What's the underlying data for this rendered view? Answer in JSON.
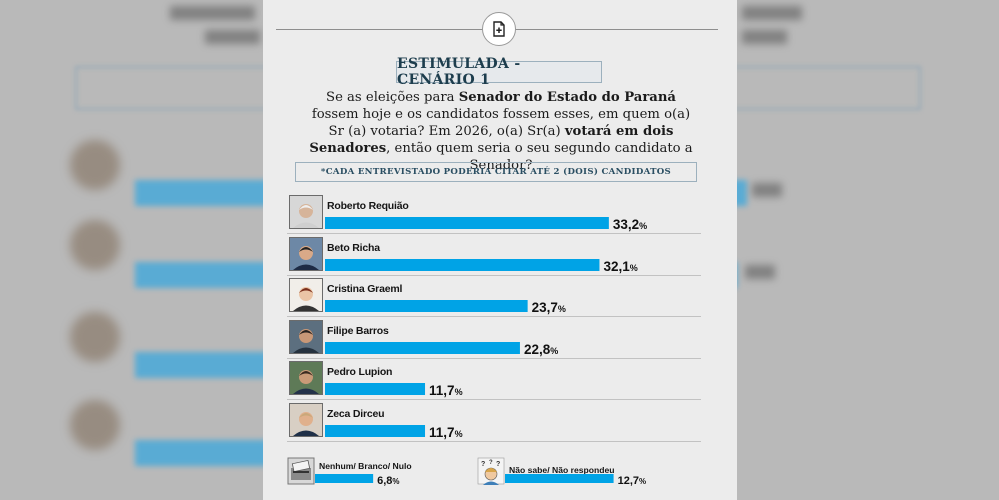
{
  "header": {
    "title": "ESTIMULADA - CENÁRIO 1",
    "question_parts": [
      {
        "text": "Se as eleições para ",
        "bold": false
      },
      {
        "text": "Senador do Estado do Paraná",
        "bold": true
      },
      {
        "text": " fossem hoje e os candidatos fossem esses, em quem o(a) Sr (a) votaria? Em 2026, o(a) Sr(a) ",
        "bold": false
      },
      {
        "text": "votará em dois Senadores",
        "bold": true
      },
      {
        "text": ", então quem seria o seu segundo candidato a Senador?",
        "bold": false
      }
    ],
    "note": "*CADA ENTREVISTADO PODERIA CITAR ATÉ 2 (DOIS) CANDIDATOS"
  },
  "colors": {
    "bar": "#00a3e6",
    "panel": "#ececec",
    "title": "#1d3d4d"
  },
  "chart_data": {
    "type": "bar",
    "orientation": "horizontal",
    "categories": [
      "Roberto Requião",
      "Beto Richa",
      "Cristina Graeml",
      "Filipe Barros",
      "Pedro Lupion",
      "Zeca Dirceu"
    ],
    "values": [
      33.2,
      32.1,
      23.7,
      22.8,
      11.7,
      11.7
    ],
    "value_labels": [
      "33,2",
      "32,1",
      "23,7",
      "22,8",
      "11,7",
      "11,7"
    ],
    "unit": "%",
    "extra": [
      {
        "label": "Nenhum/ Branco/ Nulo",
        "value": 6.8,
        "value_label": "6,8"
      },
      {
        "label": "Não sabe/ Não respondeu",
        "value": 12.7,
        "value_label": "12,7"
      }
    ]
  }
}
